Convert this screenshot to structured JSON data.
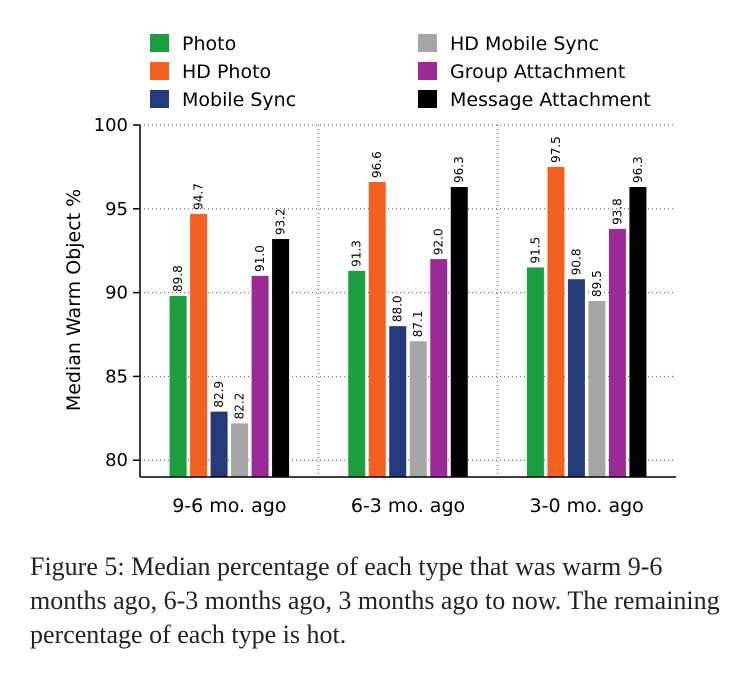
{
  "chart_data": {
    "type": "bar",
    "categories": [
      "9-6 mo. ago",
      "6-3 mo. ago",
      "3-0 mo. ago"
    ],
    "series": [
      {
        "name": "Photo",
        "color": "#1a9e3f",
        "values": [
          89.8,
          91.3,
          91.5
        ]
      },
      {
        "name": "HD Photo",
        "color": "#f26022",
        "values": [
          94.7,
          96.6,
          97.5
        ]
      },
      {
        "name": "Mobile Sync",
        "color": "#253a7a",
        "values": [
          82.9,
          88.0,
          90.8
        ]
      },
      {
        "name": "HD Mobile Sync",
        "color": "#a6a6a6",
        "values": [
          82.2,
          87.1,
          89.5
        ]
      },
      {
        "name": "Group Attachment",
        "color": "#9b2a96",
        "values": [
          91.0,
          92.0,
          93.8
        ]
      },
      {
        "name": "Message Attachment",
        "color": "#000000",
        "values": [
          93.2,
          96.3,
          96.3
        ]
      }
    ],
    "data_labels": [
      [
        "89.8",
        "91.3",
        "91.5"
      ],
      [
        "94.7",
        "96.6",
        "97.5"
      ],
      [
        "82.9",
        "88.0",
        "90.8"
      ],
      [
        "82.2",
        "87.1",
        "89.5"
      ],
      [
        "91.0",
        "92.0",
        "93.8"
      ],
      [
        "93.2",
        "96.3",
        "96.3"
      ]
    ],
    "ylabel": "Median Warm Object %",
    "xlabel": "",
    "ylim": [
      79,
      100
    ],
    "yticks": [
      "80",
      "85",
      "90",
      "95",
      "100"
    ],
    "grid": true,
    "legend_position": "top"
  },
  "caption": "Figure 5: Median percentage of each type that was warm 9-6 months ago, 6-3 months ago, 3 months ago to now. The remaining percentage of each type is hot."
}
